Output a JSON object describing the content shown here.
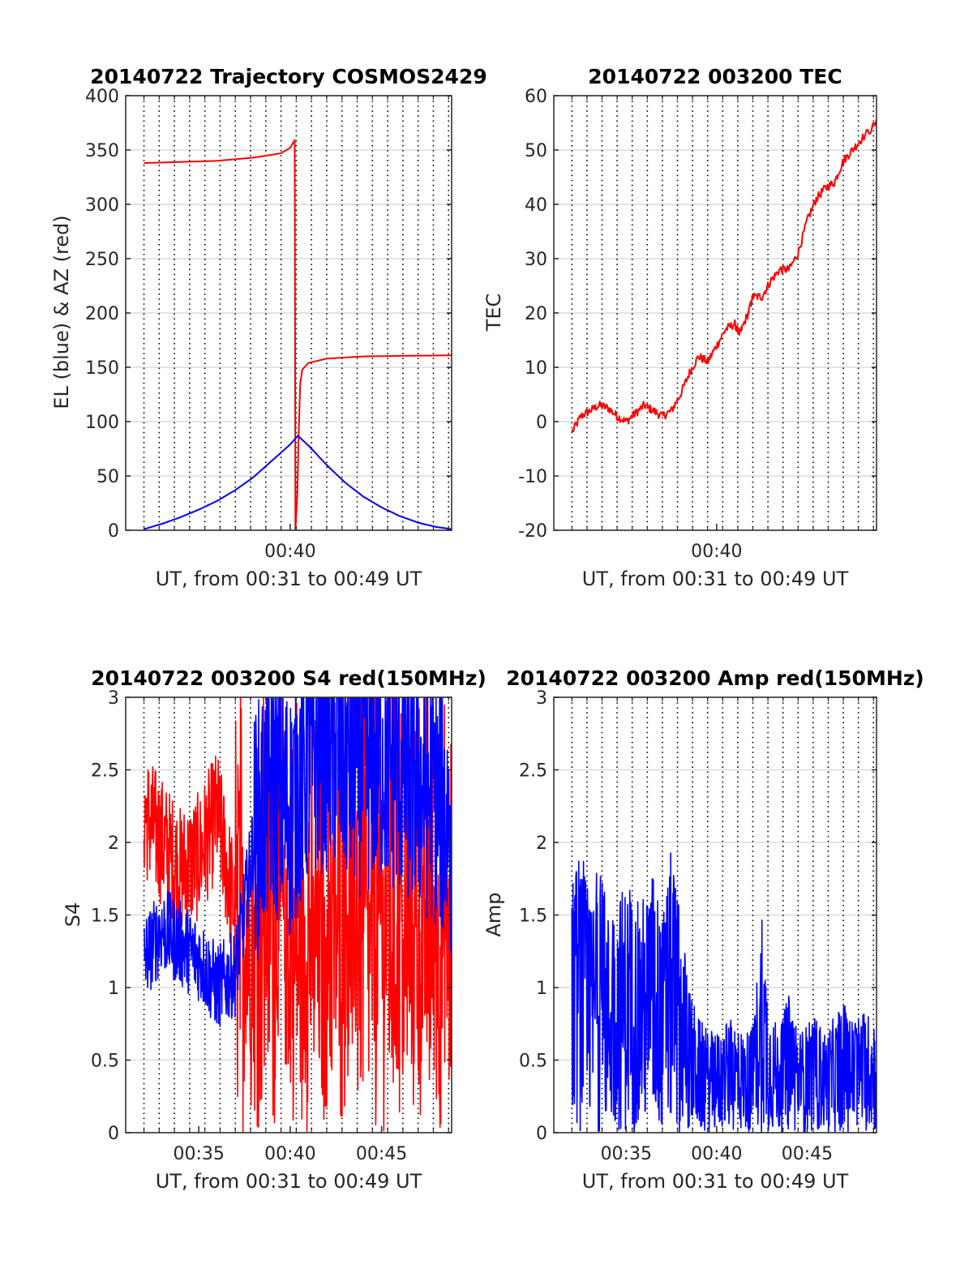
{
  "chart_data": [
    {
      "type": "line",
      "title": "20140722 Trajectory COSMOS2429",
      "xlabel": "UT, from 00:31 to 00:49 UT",
      "ylabel": "EL (blue) & AZ (red)",
      "xlim": [
        "00:31:00",
        "00:48:50"
      ],
      "ylim": [
        0,
        400
      ],
      "yticks": [
        0,
        50,
        100,
        150,
        200,
        250,
        300,
        350,
        400
      ],
      "xtick_labels": [
        {
          "t": "00:40:00",
          "label": "00:40"
        }
      ],
      "minor_x_grid": "dotted, every 50 s",
      "grid": true,
      "series": [
        {
          "color": "#ff0000",
          "points": [
            [
              "00:32:00",
              338
            ],
            [
              "00:34:00",
              339
            ],
            [
              "00:36:00",
              340
            ],
            [
              "00:38:00",
              343
            ],
            [
              "00:39:30",
              347
            ],
            [
              "00:40:00",
              352
            ],
            [
              "00:40:10",
              357
            ],
            [
              "00:40:15",
              359
            ],
            [
              "00:40:17",
              0
            ],
            [
              "00:40:23",
              30
            ],
            [
              "00:40:28",
              90
            ],
            [
              "00:40:33",
              135
            ],
            [
              "00:40:40",
              148
            ],
            [
              "00:41:00",
              154
            ],
            [
              "00:42:00",
              158
            ],
            [
              "00:44:00",
              160
            ],
            [
              "00:46:00",
              160.5
            ],
            [
              "00:48:50",
              161
            ]
          ]
        },
        {
          "color": "#0000ff",
          "points": [
            [
              "00:32:00",
              1
            ],
            [
              "00:33:00",
              6
            ],
            [
              "00:34:00",
              12
            ],
            [
              "00:35:00",
              19
            ],
            [
              "00:36:00",
              27
            ],
            [
              "00:37:00",
              37
            ],
            [
              "00:38:00",
              49
            ],
            [
              "00:39:00",
              64
            ],
            [
              "00:40:00",
              79
            ],
            [
              "00:40:25",
              87
            ],
            [
              "00:41:00",
              78
            ],
            [
              "00:42:00",
              60
            ],
            [
              "00:43:00",
              44
            ],
            [
              "00:44:00",
              31
            ],
            [
              "00:45:00",
              21
            ],
            [
              "00:46:00",
              13
            ],
            [
              "00:47:00",
              7
            ],
            [
              "00:48:00",
              3
            ],
            [
              "00:48:50",
              1
            ]
          ]
        }
      ]
    },
    {
      "type": "line",
      "title": "20140722 003200 TEC",
      "xlabel": "UT, from 00:31 to 00:49 UT",
      "ylabel": "TEC",
      "xlim": [
        "00:31:00",
        "00:48:50"
      ],
      "ylim": [
        -20,
        60
      ],
      "yticks": [
        -20,
        -10,
        0,
        10,
        20,
        30,
        40,
        50,
        60
      ],
      "xtick_labels": [
        {
          "t": "00:40:00",
          "label": "00:40"
        }
      ],
      "minor_x_grid": "dotted, every 50 s",
      "grid": true,
      "series": [
        {
          "color": "#ff0000",
          "points": [
            [
              "00:32:00",
              -2
            ],
            [
              "00:32:30",
              1
            ],
            [
              "00:33:00",
              2
            ],
            [
              "00:33:30",
              3
            ],
            [
              "00:34:00",
              2.5
            ],
            [
              "00:34:30",
              1
            ],
            [
              "00:35:00",
              0
            ],
            [
              "00:35:30",
              1.5
            ],
            [
              "00:36:00",
              3
            ],
            [
              "00:36:30",
              2
            ],
            [
              "00:37:00",
              1
            ],
            [
              "00:37:30",
              2
            ],
            [
              "00:38:00",
              5
            ],
            [
              "00:38:30",
              9
            ],
            [
              "00:39:00",
              12
            ],
            [
              "00:39:30",
              11
            ],
            [
              "00:40:00",
              14
            ],
            [
              "00:40:30",
              17
            ],
            [
              "00:41:00",
              18
            ],
            [
              "00:41:15",
              16
            ],
            [
              "00:41:45",
              20
            ],
            [
              "00:42:00",
              23
            ],
            [
              "00:42:30",
              23
            ],
            [
              "00:43:00",
              26
            ],
            [
              "00:43:30",
              28
            ],
            [
              "00:44:00",
              28
            ],
            [
              "00:44:30",
              31
            ],
            [
              "00:45:00",
              37
            ],
            [
              "00:45:30",
              41
            ],
            [
              "00:46:00",
              43
            ],
            [
              "00:46:30",
              44
            ],
            [
              "00:47:00",
              48
            ],
            [
              "00:47:30",
              50
            ],
            [
              "00:48:00",
              52
            ],
            [
              "00:48:50",
              55
            ]
          ]
        }
      ]
    },
    {
      "type": "line",
      "title": "20140722 003200 S4 red(150MHz)",
      "xlabel": "UT, from 00:31 to 00:49 UT",
      "ylabel": "S4",
      "xlim": [
        "00:31:00",
        "00:48:50"
      ],
      "ylim": [
        0,
        3
      ],
      "yticks": [
        0,
        0.5,
        1,
        1.5,
        2,
        2.5,
        3
      ],
      "ytick_labels": [
        "0",
        "0.5",
        "1",
        "1.5",
        "2",
        "2.5",
        "3"
      ],
      "xtick_labels": [
        {
          "t": "00:35:00",
          "label": "00:35"
        },
        {
          "t": "00:40:00",
          "label": "00:40"
        },
        {
          "t": "00:45:00",
          "label": "00:45"
        }
      ],
      "minor_x_grid": "dotted, every 50 s",
      "grid": true,
      "series": [
        {
          "color": "#ff0000",
          "points": [
            [
              "00:32:00",
              2.2
            ],
            [
              "00:33:00",
              2.0
            ],
            [
              "00:34:00",
              1.8
            ],
            [
              "00:35:00",
              1.9
            ],
            [
              "00:36:00",
              2.2
            ],
            [
              "00:37:00",
              1.5
            ],
            [
              "00:38:00",
              1.2
            ],
            [
              "00:39:00",
              1.6
            ],
            [
              "00:40:00",
              1.0
            ],
            [
              "00:41:00",
              1.3
            ],
            [
              "00:42:00",
              0.9
            ],
            [
              "00:43:00",
              1.5
            ],
            [
              "00:44:00",
              1.1
            ],
            [
              "00:45:00",
              1.4
            ],
            [
              "00:46:00",
              1.0
            ],
            [
              "00:47:00",
              1.2
            ],
            [
              "00:48:00",
              1.1
            ],
            [
              "00:48:50",
              1.3
            ]
          ],
          "note_range": [
            0,
            3
          ]
        },
        {
          "color": "#0000ff",
          "points": [
            [
              "00:32:00",
              1.2
            ],
            [
              "00:33:00",
              1.4
            ],
            [
              "00:34:00",
              1.3
            ],
            [
              "00:35:00",
              1.2
            ],
            [
              "00:36:00",
              1.0
            ],
            [
              "00:37:00",
              1.1
            ],
            [
              "00:38:00",
              2.0
            ],
            [
              "00:39:00",
              2.4
            ],
            [
              "00:40:00",
              2.2
            ],
            [
              "00:41:00",
              2.6
            ],
            [
              "00:42:00",
              2.7
            ],
            [
              "00:43:00",
              2.6
            ],
            [
              "00:44:00",
              2.5
            ],
            [
              "00:45:00",
              2.6
            ],
            [
              "00:46:00",
              2.5
            ],
            [
              "00:47:00",
              2.4
            ],
            [
              "00:48:00",
              2.3
            ],
            [
              "00:48:50",
              2.1
            ]
          ]
        }
      ]
    },
    {
      "type": "line",
      "title": "20140722 003200 Amp red(150MHz)",
      "xlabel": "UT, from 00:31 to 00:49 UT",
      "ylabel": "Amp",
      "xlim": [
        "00:31:00",
        "00:48:50"
      ],
      "ylim": [
        0,
        3
      ],
      "yticks": [
        0,
        0.5,
        1,
        1.5,
        2,
        2.5,
        3
      ],
      "ytick_labels": [
        "0",
        "0.5",
        "1",
        "1.5",
        "2",
        "2.5",
        "3"
      ],
      "xtick_labels": [
        {
          "t": "00:35:00",
          "label": "00:35"
        },
        {
          "t": "00:40:00",
          "label": "00:40"
        },
        {
          "t": "00:45:00",
          "label": "00:45"
        }
      ],
      "minor_x_grid": "dotted, every 50 s",
      "grid": true,
      "series": [
        {
          "color": "#0000ff",
          "points": [
            [
              "00:32:00",
              1.75
            ],
            [
              "00:32:30",
              2.02
            ],
            [
              "00:33:00",
              1.55
            ],
            [
              "00:33:30",
              1.93
            ],
            [
              "00:34:00",
              1.55
            ],
            [
              "00:34:30",
              1.65
            ],
            [
              "00:35:00",
              1.75
            ],
            [
              "00:35:30",
              1.6
            ],
            [
              "00:36:00",
              1.65
            ],
            [
              "00:36:30",
              1.85
            ],
            [
              "00:37:00",
              1.5
            ],
            [
              "00:37:30",
              1.97
            ],
            [
              "00:38:00",
              1.55
            ],
            [
              "00:38:30",
              1.0
            ],
            [
              "00:39:00",
              0.8
            ],
            [
              "00:39:30",
              0.7
            ],
            [
              "00:40:00",
              0.7
            ],
            [
              "00:40:30",
              0.75
            ],
            [
              "00:41:00",
              0.8
            ],
            [
              "00:41:30",
              0.7
            ],
            [
              "00:42:00",
              0.75
            ],
            [
              "00:42:30",
              1.55
            ],
            [
              "00:43:00",
              0.85
            ],
            [
              "00:43:30",
              0.7
            ],
            [
              "00:44:00",
              1.0
            ],
            [
              "00:44:30",
              0.7
            ],
            [
              "00:45:00",
              0.75
            ],
            [
              "00:45:30",
              0.8
            ],
            [
              "00:46:00",
              0.7
            ],
            [
              "00:46:30",
              0.8
            ],
            [
              "00:47:00",
              0.9
            ],
            [
              "00:47:30",
              0.8
            ],
            [
              "00:48:00",
              0.85
            ],
            [
              "00:48:50",
              0.85
            ]
          ]
        }
      ]
    }
  ]
}
